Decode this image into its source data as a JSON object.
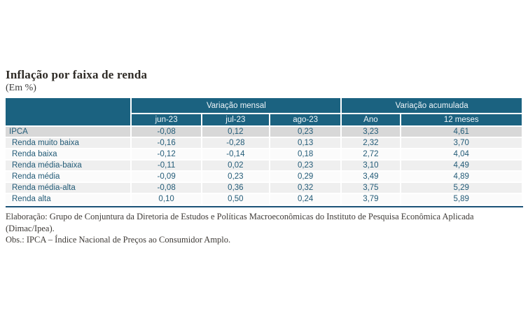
{
  "page": {
    "title": "Inflação por faixa de renda",
    "subtitle": "(Em %)"
  },
  "table": {
    "group_headers": [
      {
        "label": "Variação mensal",
        "colspan": 3
      },
      {
        "label": "Variação acumulada",
        "colspan": 2
      }
    ],
    "column_headers": [
      "jun-23",
      "jul-23",
      "ago-23",
      "Ano",
      "12 meses"
    ],
    "rows": [
      {
        "label": "IPCA",
        "values": [
          "-0,08",
          "0,12",
          "0,23",
          "3,23",
          "4,61"
        ]
      },
      {
        "label": "Renda muito baixa",
        "values": [
          "-0,16",
          "-0,28",
          "0,13",
          "2,32",
          "3,70"
        ]
      },
      {
        "label": "Renda baixa",
        "values": [
          "-0,12",
          "-0,14",
          "0,18",
          "2,72",
          "4,04"
        ]
      },
      {
        "label": "Renda média-baixa",
        "values": [
          "-0,11",
          "0,02",
          "0,23",
          "3,10",
          "4,49"
        ]
      },
      {
        "label": "Renda média",
        "values": [
          "-0,09",
          "0,23",
          "0,29",
          "3,49",
          "4,89"
        ]
      },
      {
        "label": "Renda média-alta",
        "values": [
          "-0,08",
          "0,36",
          "0,32",
          "3,75",
          "5,29"
        ]
      },
      {
        "label": "Renda alta",
        "values": [
          "0,10",
          "0,50",
          "0,24",
          "3,79",
          "5,89"
        ]
      }
    ]
  },
  "footnotes": {
    "elaboration": "Elaboração: Grupo de Conjuntura da Diretoria de Estudos e Políticas Macroeconômicas do Instituto de Pesquisa Econômica Aplicada (Dimac/Ipea).",
    "observation": "Obs.: IPCA – Índice Nacional de Preços ao Consumidor Amplo."
  },
  "colors": {
    "header_bg": "#1b6280",
    "header_text": "#eff5f8",
    "ipca_row_bg": "#d8d8d8",
    "alt_row_bg": "#efefef",
    "light_row_bg": "#fbfbfb",
    "table_text": "#245c78",
    "bottom_rule": "#1c5377"
  },
  "chart_data": {
    "type": "table",
    "title": "Inflação por faixa de renda",
    "unit": "Em %",
    "column_groups": [
      {
        "label": "Variação mensal",
        "columns": [
          "jun-23",
          "jul-23",
          "ago-23"
        ]
      },
      {
        "label": "Variação acumulada",
        "columns": [
          "Ano",
          "12 meses"
        ]
      }
    ],
    "columns": [
      "jun-23",
      "jul-23",
      "ago-23",
      "Ano",
      "12 meses"
    ],
    "rows": [
      {
        "label": "IPCA",
        "values": [
          -0.08,
          0.12,
          0.23,
          3.23,
          4.61
        ]
      },
      {
        "label": "Renda muito baixa",
        "values": [
          -0.16,
          -0.28,
          0.13,
          2.32,
          3.7
        ]
      },
      {
        "label": "Renda baixa",
        "values": [
          -0.12,
          -0.14,
          0.18,
          2.72,
          4.04
        ]
      },
      {
        "label": "Renda média-baixa",
        "values": [
          -0.11,
          0.02,
          0.23,
          3.1,
          4.49
        ]
      },
      {
        "label": "Renda média",
        "values": [
          -0.09,
          0.23,
          0.29,
          3.49,
          4.89
        ]
      },
      {
        "label": "Renda média-alta",
        "values": [
          -0.08,
          0.36,
          0.32,
          3.75,
          5.29
        ]
      },
      {
        "label": "Renda alta",
        "values": [
          0.1,
          0.5,
          0.24,
          3.79,
          5.89
        ]
      }
    ]
  }
}
